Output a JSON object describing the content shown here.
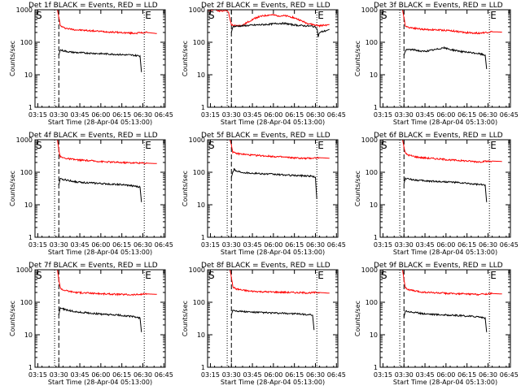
{
  "chart_data": [
    {
      "type": "line",
      "title": "Det 1f BLACK = Events, RED = LLD",
      "xlabel": "Start Time (28-Apr-04 05:13:00)",
      "ylabel": "Counts/sec",
      "x_unit": "minutes after 03:13 UT",
      "xticks": [
        "03:15",
        "03:30",
        "03:45",
        "06:00",
        "06:15",
        "06:30",
        "06:45"
      ],
      "yticks": [
        "1",
        "10",
        "100",
        "1000"
      ],
      "ylim": [
        1,
        1000
      ],
      "yscale": "log",
      "markers": [
        {
          "label": "S",
          "x": 0
        },
        {
          "label": "E",
          "x": 78
        }
      ],
      "dotted_lines_x": [
        14,
        78
      ],
      "dashed_lines_x": [
        17
      ],
      "series": [
        {
          "color": "#ff0000",
          "x": [
            16,
            17,
            18,
            20,
            24,
            30,
            40,
            50,
            60,
            70,
            80,
            87
          ],
          "y": [
            1000,
            600,
            330,
            285,
            260,
            240,
            225,
            212,
            200,
            190,
            200,
            185
          ]
        },
        {
          "color": "#000000",
          "x": [
            17,
            18,
            20,
            25,
            30,
            40,
            50,
            60,
            70,
            75,
            76
          ],
          "y": [
            40,
            58,
            55,
            50,
            48,
            46,
            44,
            42,
            40,
            38,
            12
          ]
        }
      ]
    },
    {
      "type": "line",
      "title": "Det 2f BLACK = Events, RED = LLD",
      "xlabel": "Start Time (28-Apr-04 05:13:00)",
      "ylabel": "Counts/sec",
      "x_unit": "minutes after 03:13 UT",
      "xticks": [
        "03:15",
        "03:30",
        "03:45",
        "06:00",
        "06:15",
        "06:30",
        "06:45"
      ],
      "yticks": [
        "1",
        "10",
        "100",
        "1000"
      ],
      "ylim": [
        1,
        1000
      ],
      "yscale": "log",
      "markers": [
        {
          "label": "S",
          "x": 0
        },
        {
          "label": "E",
          "x": 78
        }
      ],
      "dotted_lines_x": [
        14,
        78
      ],
      "dashed_lines_x": [
        17
      ],
      "series": [
        {
          "color": "#ff0000",
          "x": [
            0,
            5,
            10,
            13,
            15,
            16,
            17,
            18,
            20,
            25,
            30,
            35,
            40,
            45,
            50,
            55,
            60,
            65,
            70,
            75,
            80,
            85,
            87
          ],
          "y": [
            900,
            1000,
            900,
            1000,
            800,
            500,
            350,
            330,
            320,
            330,
            450,
            580,
            650,
            700,
            660,
            650,
            600,
            500,
            400,
            350,
            320,
            340,
            350
          ]
        },
        {
          "color": "#000000",
          "x": [
            17,
            18,
            20,
            25,
            30,
            35,
            40,
            45,
            50,
            55,
            60,
            65,
            70,
            75,
            78,
            79,
            80,
            85,
            87
          ],
          "y": [
            200,
            300,
            310,
            320,
            330,
            340,
            350,
            360,
            380,
            380,
            350,
            330,
            320,
            310,
            280,
            150,
            200,
            230,
            250
          ]
        }
      ]
    },
    {
      "type": "line",
      "title": "Det 3f BLACK = Events, RED = LLD",
      "xlabel": "Start Time (28-Apr-04 05:13:00)",
      "ylabel": "Counts/sec",
      "x_unit": "minutes after 03:13 UT",
      "xticks": [
        "03:15",
        "03:30",
        "03:45",
        "06:00",
        "06:15",
        "06:30",
        "06:45"
      ],
      "yticks": [
        "1",
        "10",
        "100",
        "1000"
      ],
      "ylim": [
        1,
        1000
      ],
      "yscale": "log",
      "markers": [
        {
          "label": "S",
          "x": 0
        },
        {
          "label": "E",
          "x": 78
        }
      ],
      "dotted_lines_x": [
        14,
        78
      ],
      "dashed_lines_x": [
        17
      ],
      "series": [
        {
          "color": "#ff0000",
          "x": [
            16,
            17,
            18,
            20,
            25,
            30,
            40,
            50,
            60,
            70,
            80,
            87
          ],
          "y": [
            1000,
            550,
            320,
            290,
            270,
            250,
            240,
            230,
            200,
            190,
            210,
            205
          ]
        },
        {
          "color": "#000000",
          "x": [
            17,
            18,
            20,
            25,
            30,
            35,
            40,
            45,
            50,
            55,
            60,
            70,
            75,
            76
          ],
          "y": [
            40,
            55,
            60,
            58,
            52,
            55,
            60,
            68,
            60,
            55,
            50,
            45,
            40,
            15
          ]
        }
      ]
    },
    {
      "type": "line",
      "title": "Det 4f BLACK = Events, RED = LLD",
      "xlabel": "Start Time (28-Apr-04 05:13:00)",
      "ylabel": "Counts/sec",
      "x_unit": "minutes after 03:13 UT",
      "xticks": [
        "03:15",
        "03:30",
        "03:45",
        "06:00",
        "06:15",
        "06:30",
        "06:45"
      ],
      "yticks": [
        "1",
        "10",
        "100",
        "1000"
      ],
      "ylim": [
        1,
        1000
      ],
      "yscale": "log",
      "markers": [
        {
          "label": "S",
          "x": 0
        },
        {
          "label": "E",
          "x": 78
        }
      ],
      "dotted_lines_x": [
        14,
        78
      ],
      "dashed_lines_x": [
        17
      ],
      "series": [
        {
          "color": "#ff0000",
          "x": [
            16,
            17,
            18,
            20,
            25,
            30,
            40,
            50,
            60,
            70,
            80,
            87
          ],
          "y": [
            1000,
            500,
            300,
            280,
            255,
            240,
            225,
            210,
            200,
            195,
            190,
            185
          ]
        },
        {
          "color": "#000000",
          "x": [
            17,
            18,
            20,
            25,
            30,
            40,
            50,
            60,
            70,
            75,
            76
          ],
          "y": [
            40,
            62,
            60,
            55,
            50,
            47,
            44,
            42,
            38,
            35,
            12
          ]
        }
      ]
    },
    {
      "type": "line",
      "title": "Det 5f BLACK = Events, RED = LLD",
      "xlabel": "Start Time (28-Apr-04 05:13:00)",
      "ylabel": "Counts/sec",
      "x_unit": "minutes after 03:13 UT",
      "xticks": [
        "03:15",
        "03:30",
        "03:45",
        "06:00",
        "06:15",
        "06:30",
        "06:45"
      ],
      "yticks": [
        "1",
        "10",
        "100",
        "1000"
      ],
      "ylim": [
        1,
        1000
      ],
      "yscale": "log",
      "markers": [
        {
          "label": "S",
          "x": 0
        },
        {
          "label": "E",
          "x": 78
        }
      ],
      "dotted_lines_x": [
        14,
        78
      ],
      "dashed_lines_x": [
        17
      ],
      "series": [
        {
          "color": "#ff0000",
          "x": [
            16,
            17,
            18,
            20,
            25,
            30,
            40,
            50,
            60,
            70,
            80,
            87
          ],
          "y": [
            1000,
            700,
            420,
            380,
            360,
            340,
            320,
            300,
            280,
            265,
            280,
            270
          ]
        },
        {
          "color": "#000000",
          "x": [
            17,
            18,
            19,
            20,
            25,
            30,
            40,
            50,
            60,
            70,
            75,
            77,
            78
          ],
          "y": [
            70,
            100,
            130,
            110,
            100,
            95,
            90,
            85,
            80,
            78,
            75,
            70,
            15
          ]
        }
      ]
    },
    {
      "type": "line",
      "title": "Det 6f BLACK = Events, RED = LLD",
      "xlabel": "Start Time (28-Apr-04 05:13:00)",
      "ylabel": "Counts/sec",
      "x_unit": "minutes after 03:13 UT",
      "xticks": [
        "03:15",
        "03:30",
        "03:45",
        "06:00",
        "06:15",
        "06:30",
        "06:45"
      ],
      "yticks": [
        "1",
        "10",
        "100",
        "1000"
      ],
      "ylim": [
        1,
        1000
      ],
      "yscale": "log",
      "markers": [
        {
          "label": "S",
          "x": 0
        },
        {
          "label": "E",
          "x": 78
        }
      ],
      "dotted_lines_x": [
        14,
        78
      ],
      "dashed_lines_x": [
        17
      ],
      "series": [
        {
          "color": "#ff0000",
          "x": [
            16,
            17,
            18,
            20,
            25,
            30,
            40,
            50,
            60,
            70,
            80,
            87
          ],
          "y": [
            1000,
            600,
            380,
            340,
            300,
            280,
            260,
            240,
            225,
            210,
            220,
            215
          ]
        },
        {
          "color": "#000000",
          "x": [
            17,
            18,
            20,
            25,
            30,
            40,
            50,
            60,
            70,
            75,
            76
          ],
          "y": [
            45,
            65,
            62,
            58,
            55,
            52,
            50,
            46,
            42,
            40,
            12
          ]
        }
      ]
    },
    {
      "type": "line",
      "title": "Det 7f BLACK = Events, RED = LLD",
      "xlabel": "Start Time (28-Apr-04 05:13:00)",
      "ylabel": "Counts/sec",
      "x_unit": "minutes after 03:13 UT",
      "xticks": [
        "03:15",
        "03:30",
        "03:45",
        "06:00",
        "06:15",
        "06:30",
        "06:45"
      ],
      "yticks": [
        "1",
        "10",
        "100",
        "1000"
      ],
      "ylim": [
        1,
        1000
      ],
      "yscale": "log",
      "markers": [
        {
          "label": "S",
          "x": 0
        },
        {
          "label": "E",
          "x": 78
        }
      ],
      "dotted_lines_x": [
        14,
        78
      ],
      "dashed_lines_x": [
        17
      ],
      "series": [
        {
          "color": "#ff0000",
          "x": [
            16,
            17,
            18,
            20,
            25,
            30,
            40,
            50,
            60,
            70,
            80,
            87
          ],
          "y": [
            1000,
            500,
            280,
            240,
            215,
            200,
            190,
            180,
            175,
            170,
            180,
            175
          ]
        },
        {
          "color": "#000000",
          "x": [
            17,
            18,
            20,
            25,
            30,
            40,
            50,
            60,
            70,
            75,
            76
          ],
          "y": [
            40,
            68,
            62,
            55,
            50,
            46,
            42,
            40,
            36,
            33,
            12
          ]
        }
      ]
    },
    {
      "type": "line",
      "title": "Det 8f BLACK = Events, RED = LLD",
      "xlabel": "Start Time (28-Apr-04 05:13:00)",
      "ylabel": "Counts/sec",
      "x_unit": "minutes after 03:13 UT",
      "xticks": [
        "03:15",
        "03:30",
        "03:45",
        "06:00",
        "06:15",
        "06:30",
        "06:45"
      ],
      "yticks": [
        "1",
        "10",
        "100",
        "1000"
      ],
      "ylim": [
        1,
        1000
      ],
      "yscale": "log",
      "markers": [
        {
          "label": "S",
          "x": 0
        },
        {
          "label": "E",
          "x": 78
        }
      ],
      "dotted_lines_x": [
        14,
        78
      ],
      "dashed_lines_x": [
        17
      ],
      "series": [
        {
          "color": "#ff0000",
          "x": [
            16,
            17,
            18,
            20,
            25,
            30,
            40,
            50,
            60,
            70,
            80,
            87
          ],
          "y": [
            1000,
            600,
            300,
            260,
            235,
            220,
            210,
            205,
            200,
            195,
            200,
            190
          ]
        },
        {
          "color": "#000000",
          "x": [
            17,
            18,
            20,
            25,
            30,
            40,
            50,
            60,
            70,
            75,
            76
          ],
          "y": [
            40,
            58,
            55,
            52,
            50,
            48,
            46,
            45,
            42,
            40,
            14
          ]
        }
      ]
    },
    {
      "type": "line",
      "title": "Det 9f BLACK = Events, RED = LLD",
      "xlabel": "Start Time (28-Apr-04 05:13:00)",
      "ylabel": "Counts/sec",
      "x_unit": "minutes after 03:13 UT",
      "xticks": [
        "03:15",
        "03:30",
        "03:45",
        "06:00",
        "06:15",
        "06:30",
        "06:45"
      ],
      "yticks": [
        "1",
        "10",
        "100",
        "1000"
      ],
      "ylim": [
        1,
        1000
      ],
      "yscale": "log",
      "markers": [
        {
          "label": "S",
          "x": 0
        },
        {
          "label": "E",
          "x": 78
        }
      ],
      "dotted_lines_x": [
        14,
        78
      ],
      "dashed_lines_x": [
        17
      ],
      "series": [
        {
          "color": "#ff0000",
          "x": [
            16,
            17,
            18,
            20,
            25,
            30,
            40,
            50,
            60,
            70,
            80,
            87
          ],
          "y": [
            1000,
            500,
            280,
            245,
            220,
            205,
            195,
            185,
            180,
            175,
            185,
            180
          ]
        },
        {
          "color": "#000000",
          "x": [
            17,
            18,
            20,
            25,
            30,
            40,
            50,
            60,
            70,
            75,
            76
          ],
          "y": [
            35,
            55,
            52,
            48,
            45,
            42,
            40,
            38,
            36,
            33,
            12
          ]
        }
      ]
    }
  ]
}
